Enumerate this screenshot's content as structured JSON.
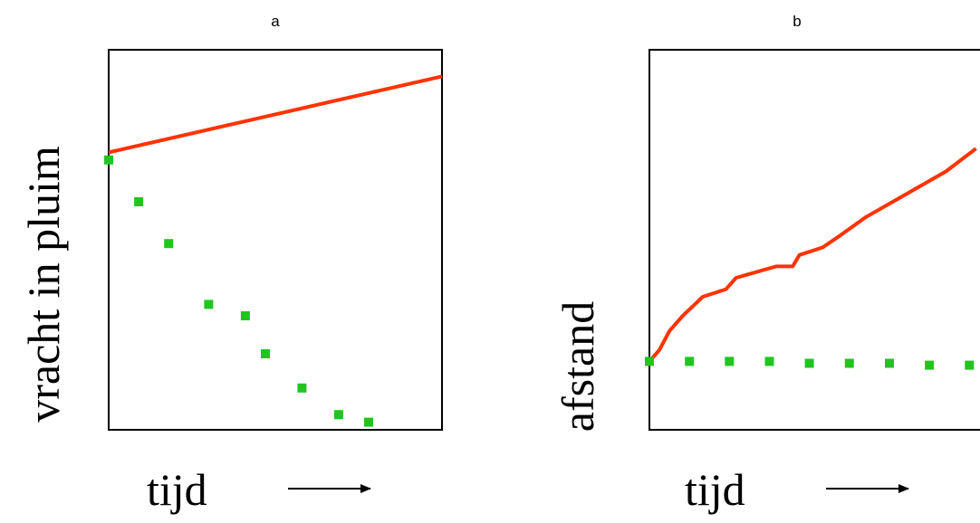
{
  "chart_data": [
    {
      "type": "line",
      "title": "a",
      "xlabel": "tijd",
      "ylabel": "vracht in pluim",
      "xlim": [
        0,
        10
      ],
      "ylim": [
        0,
        10
      ],
      "grid": false,
      "axis_ticks": false,
      "series": [
        {
          "style": "solid",
          "color": "#ff3300",
          "x": [
            0,
            10
          ],
          "y": [
            7.3,
            9.3
          ]
        },
        {
          "style": "dotted",
          "color": "#22c422",
          "x": [
            0,
            0.9,
            1.8,
            3.0,
            4.1,
            4.7,
            5.8,
            6.9,
            7.8
          ],
          "y": [
            7.1,
            6.0,
            4.9,
            3.3,
            3.0,
            2.0,
            1.1,
            0.4,
            0.2
          ]
        }
      ]
    },
    {
      "type": "line",
      "title": "b",
      "xlabel": "tijd",
      "ylabel": "afstand",
      "xlim": [
        0,
        10
      ],
      "ylim": [
        0,
        10
      ],
      "grid": false,
      "axis_ticks": false,
      "series": [
        {
          "style": "solid",
          "color": "#ff3300",
          "x": [
            0,
            0.3,
            0.6,
            1.0,
            1.6,
            2.3,
            2.6,
            3.0,
            3.8,
            4.3,
            4.5,
            5.2,
            5.7,
            6.5,
            7.7,
            8.9,
            9.8
          ],
          "y": [
            1.8,
            2.1,
            2.6,
            3.0,
            3.5,
            3.7,
            4.0,
            4.1,
            4.3,
            4.3,
            4.6,
            4.8,
            5.1,
            5.6,
            6.2,
            6.8,
            7.4
          ]
        },
        {
          "style": "dotted",
          "color": "#22c422",
          "x": [
            0,
            1.2,
            2.4,
            3.6,
            4.8,
            6.0,
            7.2,
            8.4,
            9.6
          ],
          "y": [
            1.8,
            1.8,
            1.8,
            1.8,
            1.75,
            1.75,
            1.75,
            1.7,
            1.7
          ]
        }
      ]
    }
  ]
}
